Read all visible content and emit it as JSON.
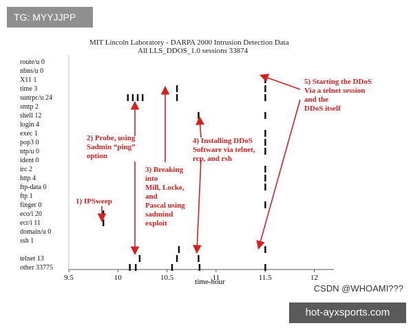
{
  "badge": {
    "text": "TG: MYYJJPP"
  },
  "watermark": {
    "text": "CSDN @WHOAMI???"
  },
  "site_banner": {
    "text": "hot-ayxsports.com"
  },
  "chart_data": {
    "type": "scatter",
    "title": "MIT Lincoln Laboratory - DARPA 2000 Intrusion Detection Data",
    "subtitle": "All    LLS_DDOS_1.0     sessions 33874",
    "xlabel": "time-hour",
    "xlim": [
      9.5,
      12.2
    ],
    "x_ticks": [
      "9.5",
      "10",
      "10.5",
      "11",
      "11.5",
      "12"
    ],
    "x_tick_values": [
      9.5,
      10,
      10.5,
      11,
      11.5,
      12
    ],
    "categories": [
      "route/u 0",
      "nbns/u 0",
      "X11 1",
      "time 3",
      "sunrpc/u 24",
      "smtp 2",
      "shell 12",
      "login 4",
      "exec 1",
      "pop3 0",
      "ntp/u 0",
      "ident 0",
      "irc 2",
      "http 4",
      "ftp-data 0",
      "ftp 1",
      "finger 0",
      "eco/i 20",
      "ecr/i 11",
      "domain/u 0",
      "ssh 1",
      "",
      "telnet 13",
      "other 33775"
    ],
    "points": [
      {
        "x": 9.85,
        "row": 17
      },
      {
        "x": 9.85,
        "row": 18
      },
      {
        "x": 10.1,
        "row": 4
      },
      {
        "x": 10.15,
        "row": 4
      },
      {
        "x": 10.2,
        "row": 4
      },
      {
        "x": 10.25,
        "row": 4
      },
      {
        "x": 10.12,
        "row": 23
      },
      {
        "x": 10.18,
        "row": 23
      },
      {
        "x": 10.22,
        "row": 22
      },
      {
        "x": 10.6,
        "row": 3
      },
      {
        "x": 10.6,
        "row": 4
      },
      {
        "x": 10.55,
        "row": 23
      },
      {
        "x": 10.6,
        "row": 22
      },
      {
        "x": 10.62,
        "row": 21
      },
      {
        "x": 10.82,
        "row": 6
      },
      {
        "x": 10.82,
        "row": 22
      },
      {
        "x": 10.83,
        "row": 23
      },
      {
        "x": 11.5,
        "row": 2
      },
      {
        "x": 11.5,
        "row": 3
      },
      {
        "x": 11.5,
        "row": 4
      },
      {
        "x": 11.5,
        "row": 6
      },
      {
        "x": 11.5,
        "row": 8
      },
      {
        "x": 11.5,
        "row": 9
      },
      {
        "x": 11.5,
        "row": 10
      },
      {
        "x": 11.5,
        "row": 12
      },
      {
        "x": 11.5,
        "row": 13
      },
      {
        "x": 11.5,
        "row": 14
      },
      {
        "x": 11.5,
        "row": 16
      },
      {
        "x": 11.5,
        "row": 21
      },
      {
        "x": 11.5,
        "row": 23
      }
    ],
    "annotations": [
      {
        "text": [
          "1) IPSweep"
        ],
        "target": {
          "x": 9.85,
          "row": 17
        }
      },
      {
        "text": [
          "2) Probe, using",
          "Sadmin “ping”",
          "option"
        ],
        "target": {
          "x": 10.15,
          "row": 4
        }
      },
      {
        "text": [
          "3) Breaking",
          "into",
          "Mill, Locke,",
          "and",
          "Pascal using",
          "sadmind",
          "exploit"
        ],
        "target": {
          "x": 10.6,
          "row": 4
        }
      },
      {
        "text": [
          "4) Installing DDoS",
          "Software via telnet,",
          "rcp, and rsh"
        ],
        "target": {
          "x": 10.82,
          "row": 6
        }
      },
      {
        "text": [
          "5) Starting the DDoS",
          "Via a telnet session",
          "and the",
          "DDoS itself"
        ],
        "target": {
          "x": 11.5,
          "row": 2
        }
      }
    ]
  }
}
